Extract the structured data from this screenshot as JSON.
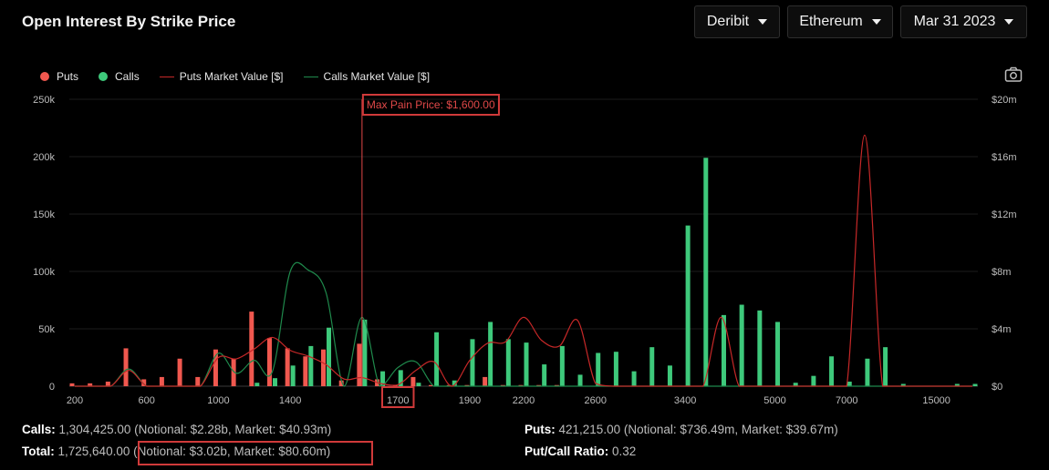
{
  "header": {
    "title": "Open Interest By Strike Price",
    "exchange": "Deribit",
    "asset": "Ethereum",
    "expiry": "Mar 31 2023"
  },
  "legend": {
    "puts": "Puts",
    "calls": "Calls",
    "puts_mv": "Puts Market Value [$]",
    "calls_mv": "Calls Market Value [$]"
  },
  "icons": {
    "camera": "camera-icon"
  },
  "colors": {
    "puts": "#f0584f",
    "calls": "#3ec97b",
    "puts_line": "#c62828",
    "calls_line": "#1f8a4c",
    "max_pain": "#e04848",
    "highlight_box": "#d03a3a"
  },
  "chart_data": {
    "type": "bar",
    "max_pain_label": "Max Pain Price: $1,600.00",
    "max_pain_strike": "1600",
    "x_tick_labels": [
      "200",
      "600",
      "1000",
      "1400",
      "1700",
      "1900",
      "2200",
      "2600",
      "3400",
      "5000",
      "7000",
      "15000"
    ],
    "y_left_ticks": [
      "0",
      "50k",
      "100k",
      "150k",
      "200k",
      "250k"
    ],
    "y_right_ticks": [
      "$0",
      "$4m",
      "$8m",
      "$12m",
      "$16m",
      "$20m"
    ],
    "ylim_left": [
      0,
      250000
    ],
    "ylim_right": [
      0,
      20000000
    ],
    "strikes": [
      "200",
      "300",
      "400",
      "500",
      "600",
      "700",
      "800",
      "900",
      "1000",
      "1100",
      "1200",
      "1300",
      "1400",
      "1450",
      "1500",
      "1550",
      "1600",
      "1650",
      "1700",
      "1750",
      "1800",
      "1850",
      "1900",
      "2000",
      "2100",
      "2200",
      "2300",
      "2400",
      "2500",
      "2600",
      "2700",
      "2800",
      "3000",
      "3200",
      "3400",
      "3600",
      "3800",
      "4000",
      "4500",
      "5000",
      "5500",
      "6000",
      "6500",
      "7000",
      "8000",
      "9000",
      "10000",
      "12000",
      "15000",
      "20000",
      "25000"
    ],
    "series": [
      {
        "name": "Puts",
        "values": [
          2500,
          2500,
          4000,
          33000,
          6000,
          8000,
          24000,
          8000,
          32000,
          24000,
          65000,
          42000,
          33000,
          26000,
          32000,
          5000,
          37000,
          6000,
          1000,
          8000,
          1000,
          1000,
          1000,
          8000,
          1000,
          1000,
          1000,
          1000,
          0,
          0,
          0,
          0,
          0,
          0,
          0,
          0,
          0,
          0,
          0,
          0,
          0,
          0,
          0,
          0,
          0,
          0,
          0,
          0,
          0,
          0,
          0
        ]
      },
      {
        "name": "Calls",
        "values": [
          0,
          0,
          0,
          0,
          0,
          0,
          0,
          0,
          0,
          0,
          3000,
          7000,
          18000,
          35000,
          51000,
          0,
          58000,
          13000,
          14000,
          3000,
          47000,
          5000,
          41000,
          56000,
          41000,
          38000,
          19000,
          35000,
          10000,
          29000,
          30000,
          13000,
          34000,
          18000,
          140000,
          199000,
          62000,
          71000,
          66000,
          56000,
          3000,
          9000,
          26000,
          4000,
          24000,
          34000,
          2000,
          0,
          0,
          2000,
          2000
        ]
      },
      {
        "name": "Puts Market Value [$]",
        "values": [
          0,
          0,
          0,
          1100000,
          0,
          0,
          0,
          0,
          2000000,
          1900000,
          2600000,
          3400000,
          2500000,
          2100000,
          1500000,
          500000,
          600000,
          200000,
          100000,
          1100000,
          1700000,
          0,
          1800000,
          3000000,
          3100000,
          4800000,
          3200000,
          2800000,
          4600000,
          200000,
          0,
          0,
          0,
          0,
          0,
          0,
          4800000,
          0,
          0,
          0,
          0,
          0,
          0,
          0,
          17500000,
          0,
          0,
          0,
          0,
          0,
          0
        ]
      },
      {
        "name": "Calls Market Value [$]",
        "values": [
          0,
          0,
          0,
          1200000,
          0,
          0,
          0,
          0,
          2300000,
          900000,
          1800000,
          1000000,
          8000000,
          8100000,
          6500000,
          0,
          4800000,
          0,
          1300000,
          1700000,
          0,
          0,
          0,
          0,
          0,
          0,
          0,
          0,
          0,
          0,
          0,
          0,
          0,
          0,
          0,
          0,
          0,
          0,
          0,
          0,
          0,
          0,
          0,
          0,
          0,
          0,
          0,
          0,
          0,
          0,
          0
        ]
      }
    ],
    "grid": "horizontal"
  },
  "footer": {
    "calls_label": "Calls:",
    "calls_value": "1,304,425.00 (Notional: $2.28b, Market: $40.93m)",
    "puts_label": "Puts:",
    "puts_value": "421,215.00 (Notional: $736.49m, Market: $39.67m)",
    "total_label": "Total:",
    "total_value": "1,725,640.00",
    "total_detail": "(Notional: $3.02b, Market: $80.60m)",
    "ratio_label": "Put/Call Ratio:",
    "ratio_value": "0.32"
  }
}
